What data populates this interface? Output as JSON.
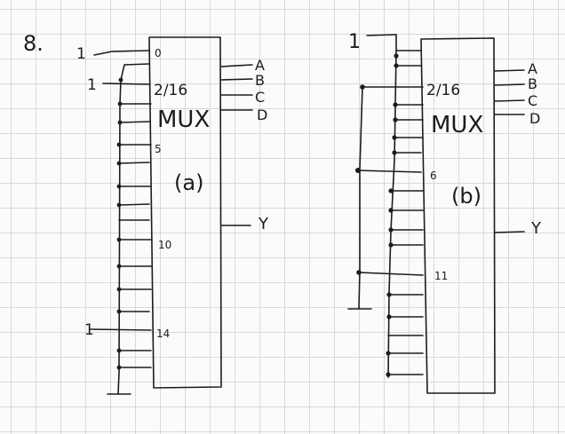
{
  "problem_number": "8.",
  "circuits": [
    {
      "id": "a",
      "caption": "(a)",
      "mux_label": "MUX",
      "size_label": "2/16",
      "pin_labels": [
        "0",
        "5",
        "10",
        "14"
      ],
      "input_source_labels": [
        "1",
        "1",
        "1"
      ],
      "select_labels": [
        "A",
        "B",
        "C",
        "D"
      ],
      "output_label": "Y"
    },
    {
      "id": "b",
      "caption": "(b)",
      "mux_label": "MUX",
      "size_label": "2/16",
      "pin_labels": [
        "6",
        "11"
      ],
      "input_source_labels": [
        "1"
      ],
      "select_labels": [
        "A",
        "B",
        "C",
        "D"
      ],
      "output_label": "Y"
    }
  ]
}
